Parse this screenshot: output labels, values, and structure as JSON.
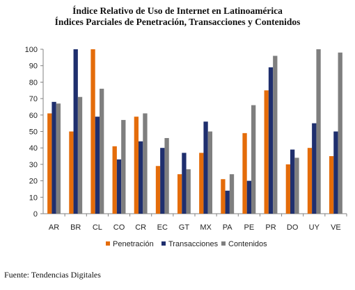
{
  "title_line1": "Índice Relativo de Uso de Internet en Latinoamérica",
  "title_line2": "Índices Parciales de Penetración, Transacciones y Contenidos",
  "source": "Fuente: Tendencias Digitales",
  "chart_data": {
    "type": "bar",
    "title": "Índice Relativo de Uso de Internet en Latinoamérica",
    "subtitle": "Índices Parciales de Penetración, Transacciones y Contenidos",
    "categories": [
      "AR",
      "BR",
      "CL",
      "CO",
      "CR",
      "EC",
      "GT",
      "MX",
      "PA",
      "PE",
      "PR",
      "DO",
      "UY",
      "VE"
    ],
    "series": [
      {
        "name": "Penetración",
        "color": "#e46c0a",
        "values": [
          61,
          50,
          100,
          41,
          59,
          29,
          24,
          37,
          21,
          49,
          75,
          30,
          40,
          35
        ]
      },
      {
        "name": "Transacciones",
        "color": "#1f2f6e",
        "values": [
          68,
          100,
          59,
          33,
          44,
          40,
          37,
          56,
          14,
          20,
          89,
          39,
          55,
          50
        ]
      },
      {
        "name": "Contenidos",
        "color": "#7f7f7f",
        "values": [
          67,
          71,
          76,
          57,
          61,
          46,
          27,
          50,
          24,
          66,
          96,
          34,
          100,
          98
        ]
      }
    ],
    "ylim": [
      0,
      100
    ],
    "yticks": [
      0,
      10,
      20,
      30,
      40,
      50,
      60,
      70,
      80,
      90,
      100
    ],
    "grid": false,
    "legend": "bottom"
  }
}
